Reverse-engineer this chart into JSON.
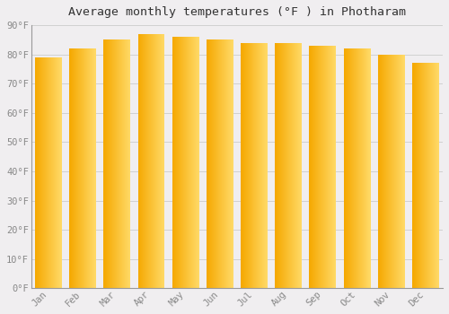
{
  "months": [
    "Jan",
    "Feb",
    "Mar",
    "Apr",
    "May",
    "Jun",
    "Jul",
    "Aug",
    "Sep",
    "Oct",
    "Nov",
    "Dec"
  ],
  "values": [
    79,
    82,
    85,
    87,
    86,
    85,
    84,
    84,
    83,
    82,
    80,
    77
  ],
  "title": "Average monthly temperatures (°F ) in Photharam",
  "ylim": [
    0,
    90
  ],
  "yticks": [
    0,
    10,
    20,
    30,
    40,
    50,
    60,
    70,
    80,
    90
  ],
  "ytick_labels": [
    "0°F",
    "10°F",
    "20°F",
    "30°F",
    "40°F",
    "50°F",
    "60°F",
    "70°F",
    "80°F",
    "90°F"
  ],
  "bar_color_left": "#F5A800",
  "bar_color_right": "#FFD966",
  "background_color": "#F0EEF0",
  "plot_bg_color": "#F0EEF0",
  "grid_color": "#CCCCCC",
  "title_fontsize": 9.5,
  "tick_fontsize": 7.5,
  "tick_color": "#888888",
  "spine_color": "#999999",
  "title_color": "#333333"
}
